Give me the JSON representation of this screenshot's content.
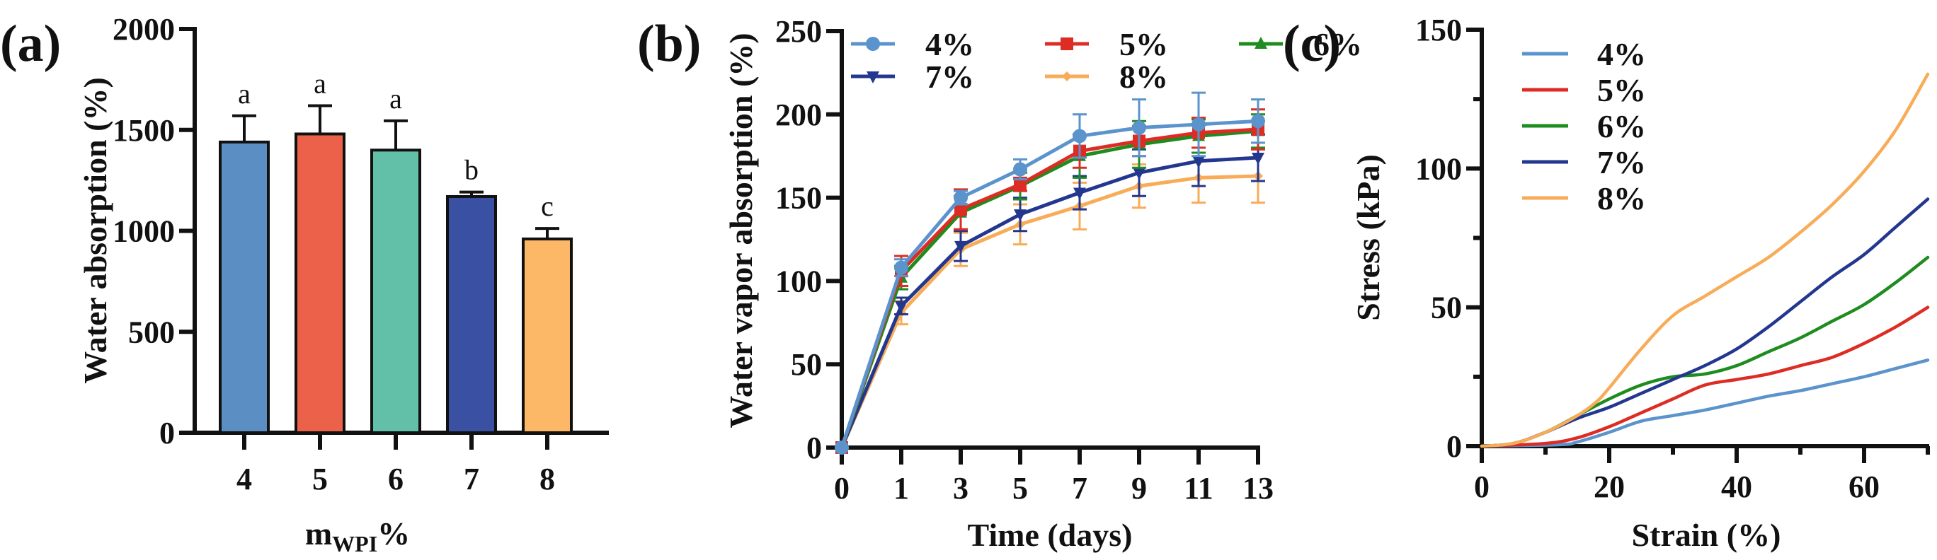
{
  "figure": {
    "panels": [
      "(a)",
      "(b)",
      "(c)"
    ]
  },
  "chart_data": [
    {
      "id": "a",
      "type": "bar",
      "title": "",
      "xlabel": "m",
      "xlabel_subscript": "WPI",
      "xlabel_suffix": "%",
      "ylabel": "Water absorption (%)",
      "ylim": [
        0,
        2000
      ],
      "yticks": [
        "0",
        "500",
        "1000",
        "1500",
        "2000"
      ],
      "categories": [
        "4",
        "5",
        "6",
        "7",
        "8"
      ],
      "values": [
        1440,
        1480,
        1400,
        1170,
        960
      ],
      "errors": [
        130,
        140,
        145,
        22,
        52
      ],
      "significance": [
        "a",
        "a",
        "a",
        "b",
        "c"
      ],
      "colors": [
        "#5b8fc4",
        "#ec6149",
        "#62c0a8",
        "#3a50a2",
        "#fcb866"
      ],
      "grid": false
    },
    {
      "id": "b",
      "type": "line",
      "title": "",
      "xlabel": "Time (days)",
      "ylabel": "Water vapor absorption  (%)",
      "ylim": [
        0,
        250
      ],
      "yticks": [
        "0",
        "50",
        "100",
        "150",
        "200",
        "250"
      ],
      "x": [
        "0",
        "1",
        "3",
        "5",
        "7",
        "9",
        "11",
        "13"
      ],
      "legend_position": "top",
      "grid": false,
      "series": [
        {
          "name": "4%",
          "color": "#5b93cc",
          "marker": "circle",
          "values": [
            0,
            108,
            150,
            167,
            187,
            192,
            194,
            196
          ],
          "errors": [
            0,
            5,
            4,
            6,
            13,
            17,
            19,
            13
          ]
        },
        {
          "name": "5%",
          "color": "#dd2c24",
          "marker": "square",
          "values": [
            0,
            106,
            143,
            158,
            178,
            184,
            189,
            191
          ],
          "errors": [
            0,
            9,
            12,
            4,
            10,
            9,
            9,
            12
          ]
        },
        {
          "name": "6%",
          "color": "#1e8c1e",
          "marker": "triangle-up",
          "values": [
            0,
            102,
            141,
            157,
            175,
            182,
            187,
            190
          ],
          "errors": [
            0,
            7,
            10,
            8,
            13,
            14,
            10,
            10
          ]
        },
        {
          "name": "7%",
          "color": "#23378f",
          "marker": "triangle-down",
          "values": [
            0,
            85,
            121,
            140,
            153,
            165,
            172,
            174
          ],
          "errors": [
            0,
            5,
            9,
            10,
            10,
            14,
            15,
            14
          ]
        },
        {
          "name": "8%",
          "color": "#f8ac58",
          "marker": "diamond",
          "values": [
            0,
            81,
            119,
            134,
            145,
            157,
            162,
            163
          ],
          "errors": [
            0,
            7,
            10,
            12,
            14,
            13,
            15,
            16
          ]
        }
      ]
    },
    {
      "id": "c",
      "type": "line",
      "title": "",
      "xlabel": "Strain (%)",
      "ylabel": "Stress (kPa)",
      "xlim": [
        0,
        70
      ],
      "ylim": [
        0,
        150
      ],
      "xticks": [
        "0",
        "20",
        "40",
        "60"
      ],
      "yticks": [
        "0",
        "50",
        "100",
        "150"
      ],
      "legend_position": "top-left",
      "grid": false,
      "series": [
        {
          "name": "4%",
          "color": "#5b93cc",
          "points": [
            [
              0,
              0
            ],
            [
              12,
              0.5
            ],
            [
              15,
              1.5
            ],
            [
              20,
              5
            ],
            [
              25,
              9
            ],
            [
              30,
              11
            ],
            [
              35,
              13
            ],
            [
              40,
              15.5
            ],
            [
              45,
              18
            ],
            [
              50,
              20
            ],
            [
              55,
              22.5
            ],
            [
              60,
              25
            ],
            [
              65,
              28
            ],
            [
              70,
              31
            ]
          ]
        },
        {
          "name": "5%",
          "color": "#dd2c24",
          "points": [
            [
              0,
              0
            ],
            [
              10,
              1
            ],
            [
              15,
              3
            ],
            [
              20,
              7
            ],
            [
              25,
              12
            ],
            [
              30,
              17
            ],
            [
              35,
              22
            ],
            [
              40,
              24
            ],
            [
              45,
              26
            ],
            [
              50,
              29
            ],
            [
              55,
              32
            ],
            [
              60,
              37
            ],
            [
              65,
              43
            ],
            [
              70,
              50
            ]
          ]
        },
        {
          "name": "6%",
          "color": "#1e8c1e",
          "points": [
            [
              0,
              0
            ],
            [
              5,
              1
            ],
            [
              10,
              5
            ],
            [
              15,
              11
            ],
            [
              20,
              17
            ],
            [
              25,
              22
            ],
            [
              30,
              25
            ],
            [
              35,
              26
            ],
            [
              40,
              29
            ],
            [
              45,
              34
            ],
            [
              50,
              39
            ],
            [
              55,
              45
            ],
            [
              60,
              51
            ],
            [
              65,
              59
            ],
            [
              70,
              68
            ]
          ]
        },
        {
          "name": "7%",
          "color": "#23378f",
          "points": [
            [
              0,
              0
            ],
            [
              5,
              1
            ],
            [
              10,
              5
            ],
            [
              15,
              10
            ],
            [
              20,
              14
            ],
            [
              25,
              19
            ],
            [
              30,
              24
            ],
            [
              35,
              29
            ],
            [
              40,
              35
            ],
            [
              45,
              43
            ],
            [
              50,
              52
            ],
            [
              55,
              61
            ],
            [
              60,
              69
            ],
            [
              65,
              79
            ],
            [
              70,
              89
            ]
          ]
        },
        {
          "name": "8%",
          "color": "#f8ac58",
          "points": [
            [
              0,
              0
            ],
            [
              5,
              1
            ],
            [
              10,
              5
            ],
            [
              15,
              11
            ],
            [
              18,
              16
            ],
            [
              20,
              21
            ],
            [
              25,
              35
            ],
            [
              30,
              47
            ],
            [
              35,
              54
            ],
            [
              40,
              61
            ],
            [
              45,
              68
            ],
            [
              50,
              77
            ],
            [
              55,
              87
            ],
            [
              60,
              99
            ],
            [
              65,
              114
            ],
            [
              70,
              134
            ]
          ]
        }
      ]
    }
  ]
}
